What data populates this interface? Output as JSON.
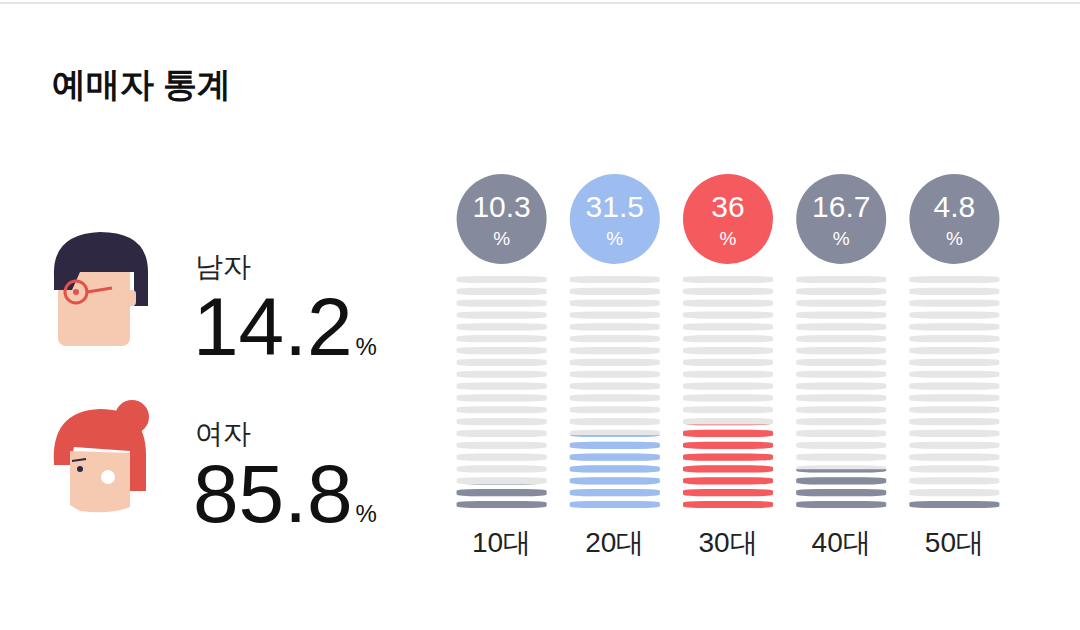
{
  "title": "예매자 통계",
  "gender": [
    {
      "label": "남자",
      "value": 14.2,
      "unit": "%"
    },
    {
      "label": "여자",
      "value": 85.8,
      "unit": "%"
    }
  ],
  "chart_data": {
    "type": "bar",
    "categories": [
      "10대",
      "20대",
      "30대",
      "40대",
      "50대"
    ],
    "values": [
      10.3,
      31.5,
      36,
      16.7,
      4.8
    ],
    "value_labels": [
      "10.3%",
      "31.5%",
      "36%",
      "16.7%",
      "4.8%"
    ],
    "colors": [
      "#858a9c",
      "#9dbcef",
      "#f55a5e",
      "#858a9c",
      "#858a9c"
    ],
    "ylim": [
      0,
      100
    ],
    "yticks": [
      0,
      5,
      10,
      15,
      20,
      25,
      30,
      35,
      40,
      45,
      50,
      55,
      60,
      65,
      70,
      75,
      80,
      85,
      90,
      95,
      100
    ],
    "grid": false,
    "tick_labels": "x",
    "data_labels": true
  }
}
